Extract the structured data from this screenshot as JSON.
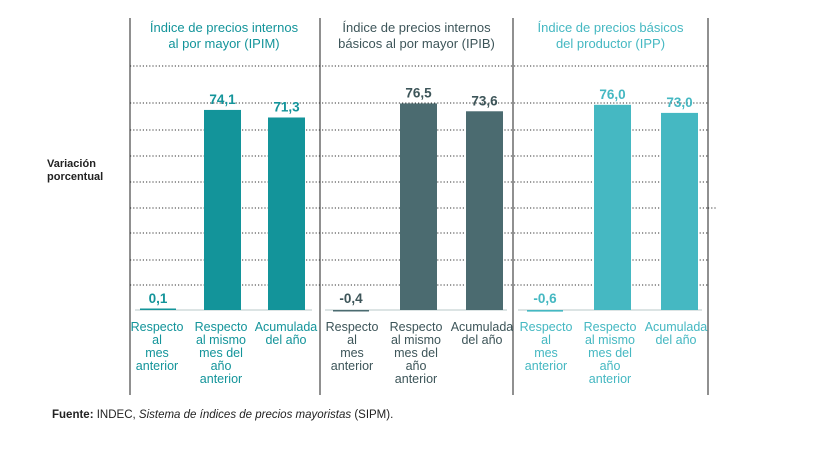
{
  "chart_data": {
    "type": "bar",
    "ylabel_lines": [
      "Variación",
      "porcentual"
    ],
    "ylim": [
      0,
      100
    ],
    "decimal_separator": ",",
    "categories": [
      "Respecto al mes anterior",
      "Respecto al mismo mes del año anterior",
      "Acumulada del año"
    ],
    "panels": [
      {
        "name": "IPIM",
        "title_lines": [
          "Índice de precios internos",
          "al por mayor (IPIM)"
        ],
        "color": "#13949a",
        "title_color": "#13949a",
        "label_color": "#13949a",
        "values": [
          0.1,
          74.1,
          71.3
        ],
        "value_labels": [
          "0,1",
          "74,1",
          "71,3"
        ],
        "category_label_lines": [
          [
            "Respecto",
            "al",
            "mes",
            "anterior"
          ],
          [
            "Respecto",
            "al mismo",
            "mes del",
            "año",
            "anterior"
          ],
          [
            "Acumulada",
            "del año"
          ]
        ]
      },
      {
        "name": "IPIB",
        "title_lines": [
          "Índice de precios internos",
          "básicos al por mayor (IPIB)"
        ],
        "color": "#4b6b70",
        "title_color": "#3d5559",
        "label_color": "#3d5559",
        "values": [
          -0.4,
          76.5,
          73.6
        ],
        "value_labels": [
          "-0,4",
          "76,5",
          "73,6"
        ],
        "category_label_lines": [
          [
            "Respecto",
            "al",
            "mes",
            "anterior"
          ],
          [
            "Respecto",
            "al mismo",
            "mes del",
            "año",
            "anterior"
          ],
          [
            "Acumulada",
            "del año"
          ]
        ]
      },
      {
        "name": "IPP",
        "title_lines": [
          "Índice de precios básicos",
          "del productor (IPP)"
        ],
        "color": "#45b8c2",
        "title_color": "#45b8c2",
        "label_color": "#45b8c2",
        "values": [
          -0.6,
          76.0,
          73.0
        ],
        "value_labels": [
          "-0,6",
          "76,0",
          "73,0"
        ],
        "category_label_lines": [
          [
            "Respecto",
            "al",
            "mes",
            "anterior"
          ],
          [
            "Respecto",
            "al mismo",
            "mes del",
            "año",
            "anterior"
          ],
          [
            "Acumulada",
            "del año"
          ]
        ]
      }
    ]
  },
  "source": {
    "label": "Fuente:",
    "org": " INDEC, ",
    "title": "Sistema de índices de precios mayoristas",
    "tail": " (SIPM)."
  }
}
